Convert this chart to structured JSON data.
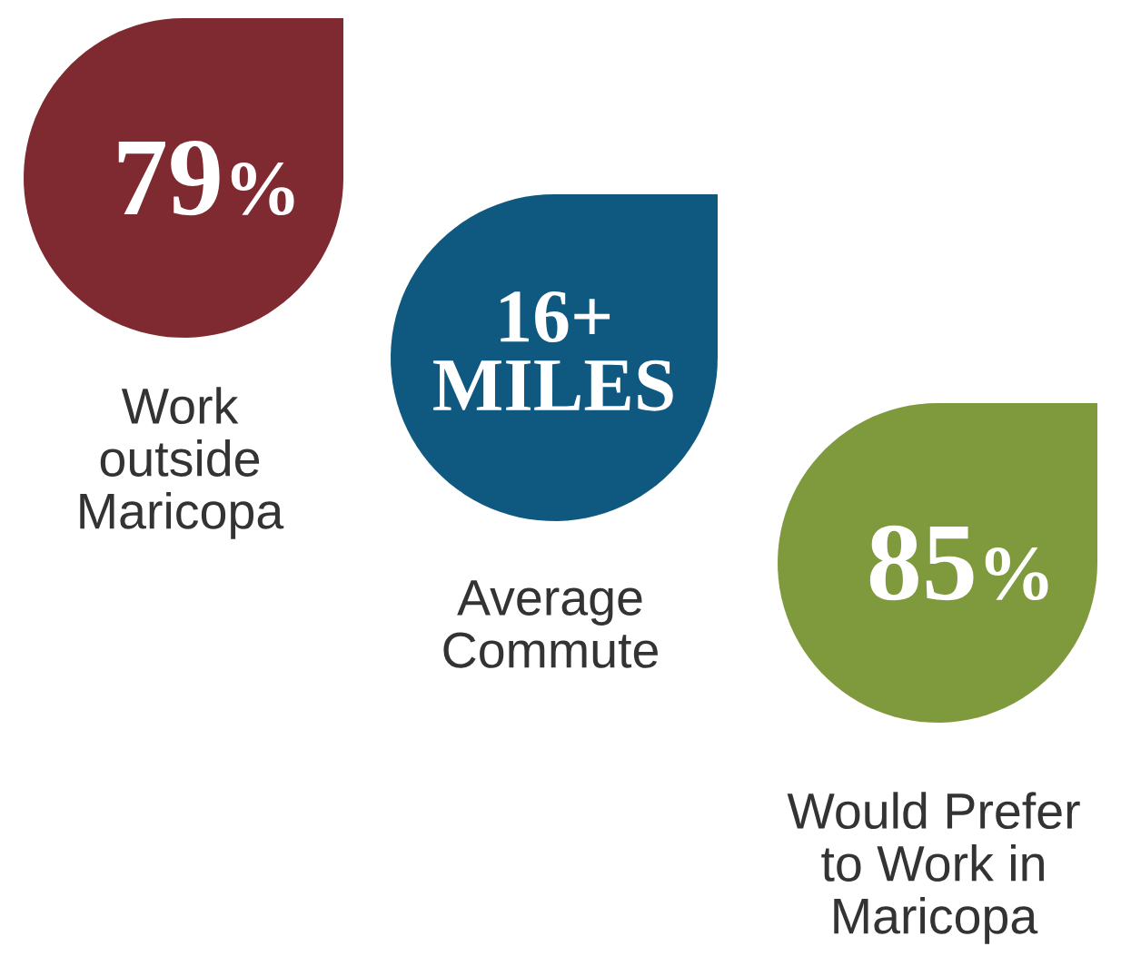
{
  "chart_data": {
    "type": "other",
    "categories": [
      "Work\noutside\nMaricopa",
      "Average\nCommute",
      "Would Prefer\nto Work in\nMaricopa"
    ],
    "values": [
      79,
      16,
      85
    ],
    "value_labels": [
      "79%",
      "16+\nMILES",
      "85%"
    ],
    "colors": [
      "#7f2a30",
      "#0f587f",
      "#7f9a3c"
    ]
  }
}
